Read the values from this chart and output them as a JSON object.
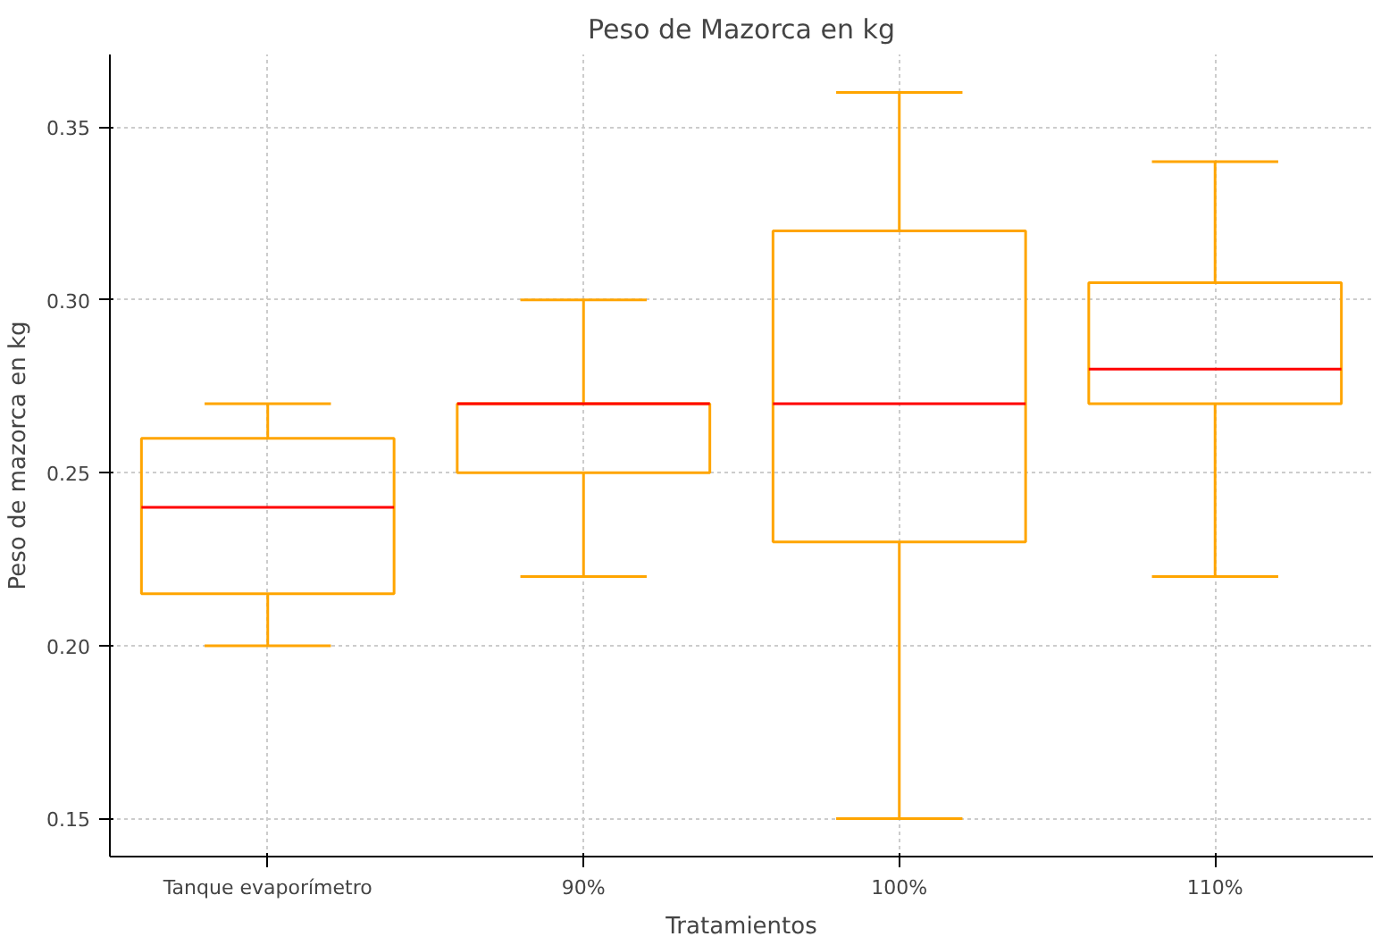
{
  "chart_data": {
    "type": "box",
    "title": "Peso de Mazorca en kg",
    "xlabel": "Tratamientos",
    "ylabel": "Peso de mazorca en kg",
    "categories": [
      "Tanque evaporímetro",
      "90%",
      "100%",
      "110%"
    ],
    "series": [
      {
        "color": "#ffa500",
        "boxes": [
          {
            "low": 0.2,
            "q1": 0.215,
            "median": 0.24,
            "q3": 0.26,
            "high": 0.27
          },
          {
            "low": 0.22,
            "q1": 0.25,
            "median": 0.27,
            "q3": 0.27,
            "high": 0.3
          },
          {
            "low": 0.15,
            "q1": 0.23,
            "median": 0.27,
            "q3": 0.32,
            "high": 0.36
          },
          {
            "low": 0.22,
            "q1": 0.27,
            "median": 0.28,
            "q3": 0.305,
            "high": 0.34
          }
        ]
      }
    ],
    "ylim": [
      0.139,
      0.371
    ],
    "yticks": [
      {
        "value": 0.15,
        "label": "0.15"
      },
      {
        "value": 0.2,
        "label": "0.20"
      },
      {
        "value": 0.25,
        "label": "0.25"
      },
      {
        "value": 0.3,
        "label": "0.30"
      },
      {
        "value": 0.35,
        "label": "0.35"
      }
    ],
    "grid": true
  }
}
